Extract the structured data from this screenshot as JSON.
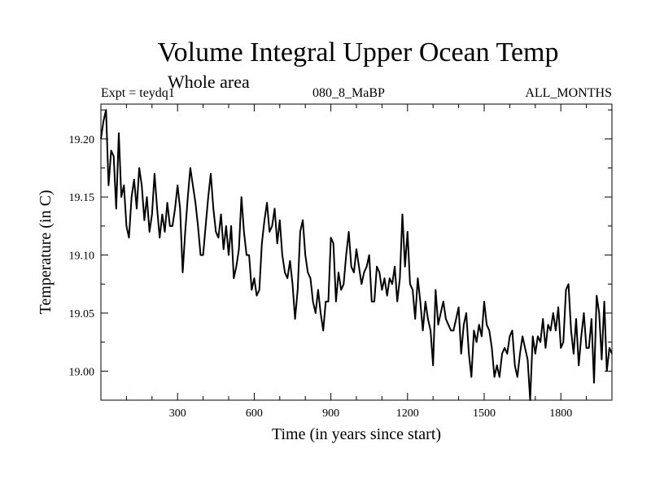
{
  "header": {
    "title": "Volume Integral Upper Ocean Temp",
    "subtitle": "Whole area",
    "expt": "Expt = teydq1",
    "run": "080_8_MaBP",
    "months": "ALL_MONTHS"
  },
  "chart_data": {
    "type": "line",
    "title": "Volume Integral Upper Ocean Temp",
    "subtitle": "Whole area",
    "xlabel": "Time (in years since start)",
    "ylabel": "Temperature (in C)",
    "xlim": [
      0,
      2000
    ],
    "ylim": [
      18.975,
      19.23
    ],
    "xticks": [
      300,
      600,
      900,
      1200,
      1500,
      1800
    ],
    "xtick_labels": [
      "300",
      "600",
      "900",
      "1200",
      "1500",
      "1800"
    ],
    "yticks": [
      19.0,
      19.05,
      19.1,
      19.15,
      19.2
    ],
    "ytick_labels": [
      "19.00",
      "19.05",
      "19.10",
      "19.15",
      "19.20"
    ],
    "grid": false,
    "series": [
      {
        "name": "teydq1",
        "x": [
          0,
          10,
          20,
          30,
          40,
          50,
          60,
          70,
          80,
          90,
          100,
          110,
          120,
          130,
          140,
          150,
          160,
          170,
          180,
          190,
          200,
          210,
          220,
          230,
          240,
          250,
          260,
          270,
          280,
          290,
          300,
          310,
          320,
          330,
          340,
          350,
          360,
          370,
          380,
          390,
          400,
          410,
          420,
          430,
          440,
          450,
          460,
          470,
          480,
          490,
          500,
          510,
          520,
          530,
          540,
          550,
          560,
          570,
          580,
          590,
          600,
          610,
          620,
          630,
          640,
          650,
          660,
          670,
          680,
          690,
          700,
          710,
          720,
          730,
          740,
          750,
          760,
          770,
          780,
          790,
          800,
          810,
          820,
          830,
          840,
          850,
          860,
          870,
          880,
          890,
          900,
          910,
          920,
          930,
          940,
          950,
          960,
          970,
          980,
          990,
          1000,
          1010,
          1020,
          1030,
          1040,
          1050,
          1060,
          1070,
          1080,
          1090,
          1100,
          1110,
          1120,
          1130,
          1140,
          1150,
          1160,
          1170,
          1180,
          1190,
          1200,
          1210,
          1220,
          1230,
          1240,
          1250,
          1260,
          1270,
          1280,
          1290,
          1300,
          1310,
          1320,
          1330,
          1340,
          1350,
          1360,
          1370,
          1380,
          1390,
          1400,
          1410,
          1420,
          1430,
          1440,
          1450,
          1460,
          1470,
          1480,
          1490,
          1500,
          1510,
          1520,
          1530,
          1540,
          1550,
          1560,
          1570,
          1580,
          1590,
          1600,
          1610,
          1620,
          1630,
          1640,
          1650,
          1660,
          1670,
          1680,
          1690,
          1700,
          1710,
          1720,
          1730,
          1740,
          1750,
          1760,
          1770,
          1780,
          1790,
          1800,
          1810,
          1820,
          1830,
          1840,
          1850,
          1860,
          1870,
          1880,
          1890,
          1900,
          1910,
          1920,
          1930,
          1940,
          1950,
          1960,
          1970,
          1980,
          1990,
          2000
        ],
        "values": [
          19.2,
          19.215,
          19.225,
          19.16,
          19.19,
          19.185,
          19.14,
          19.205,
          19.15,
          19.16,
          19.125,
          19.115,
          19.15,
          19.165,
          19.14,
          19.175,
          19.16,
          19.13,
          19.15,
          19.12,
          19.135,
          19.17,
          19.14,
          19.115,
          19.135,
          19.12,
          19.145,
          19.125,
          19.125,
          19.14,
          19.16,
          19.14,
          19.085,
          19.12,
          19.15,
          19.175,
          19.16,
          19.145,
          19.125,
          19.1,
          19.1,
          19.125,
          19.15,
          19.17,
          19.14,
          19.12,
          19.115,
          19.135,
          19.105,
          19.125,
          19.1,
          19.125,
          19.08,
          19.09,
          19.105,
          19.15,
          19.12,
          19.1,
          19.1,
          19.07,
          19.08,
          19.065,
          19.07,
          19.11,
          19.13,
          19.145,
          19.12,
          19.125,
          19.14,
          19.11,
          19.13,
          19.1,
          19.085,
          19.08,
          19.095,
          19.075,
          19.045,
          19.07,
          19.12,
          19.13,
          19.1,
          19.085,
          19.08,
          19.06,
          19.05,
          19.07,
          19.05,
          19.035,
          19.06,
          19.06,
          19.115,
          19.11,
          19.06,
          19.085,
          19.07,
          19.075,
          19.1,
          19.12,
          19.09,
          19.085,
          19.105,
          19.09,
          19.075,
          19.085,
          19.09,
          19.1,
          19.06,
          19.06,
          19.09,
          19.085,
          19.07,
          19.08,
          19.065,
          19.08,
          19.075,
          19.09,
          19.06,
          19.08,
          19.135,
          19.09,
          19.12,
          19.075,
          19.07,
          19.045,
          19.08,
          19.06,
          19.035,
          19.06,
          19.045,
          19.035,
          19.005,
          19.07,
          19.04,
          19.05,
          19.06,
          19.045,
          19.04,
          19.035,
          19.035,
          19.045,
          19.055,
          19.015,
          19.04,
          19.05,
          19.015,
          18.995,
          19.035,
          19.025,
          19.04,
          19.03,
          19.06,
          19.04,
          19.035,
          19.02,
          18.995,
          19.005,
          18.995,
          19.015,
          19.02,
          19.015,
          19.03,
          19.035,
          19.005,
          18.995,
          19.015,
          19.03,
          19.02,
          19.01,
          18.975,
          19.03,
          19.015,
          19.03,
          19.025,
          19.045,
          19.02,
          19.04,
          19.035,
          19.05,
          19.035,
          19.055,
          19.02,
          19.025,
          19.07,
          19.075,
          19.035,
          19.015,
          19.045,
          19.005,
          19.03,
          19.05,
          19.02,
          19.02,
          19.045,
          18.99,
          19.065,
          19.05,
          19.01,
          19.06,
          19.0,
          19.02,
          19.015
        ]
      }
    ]
  }
}
